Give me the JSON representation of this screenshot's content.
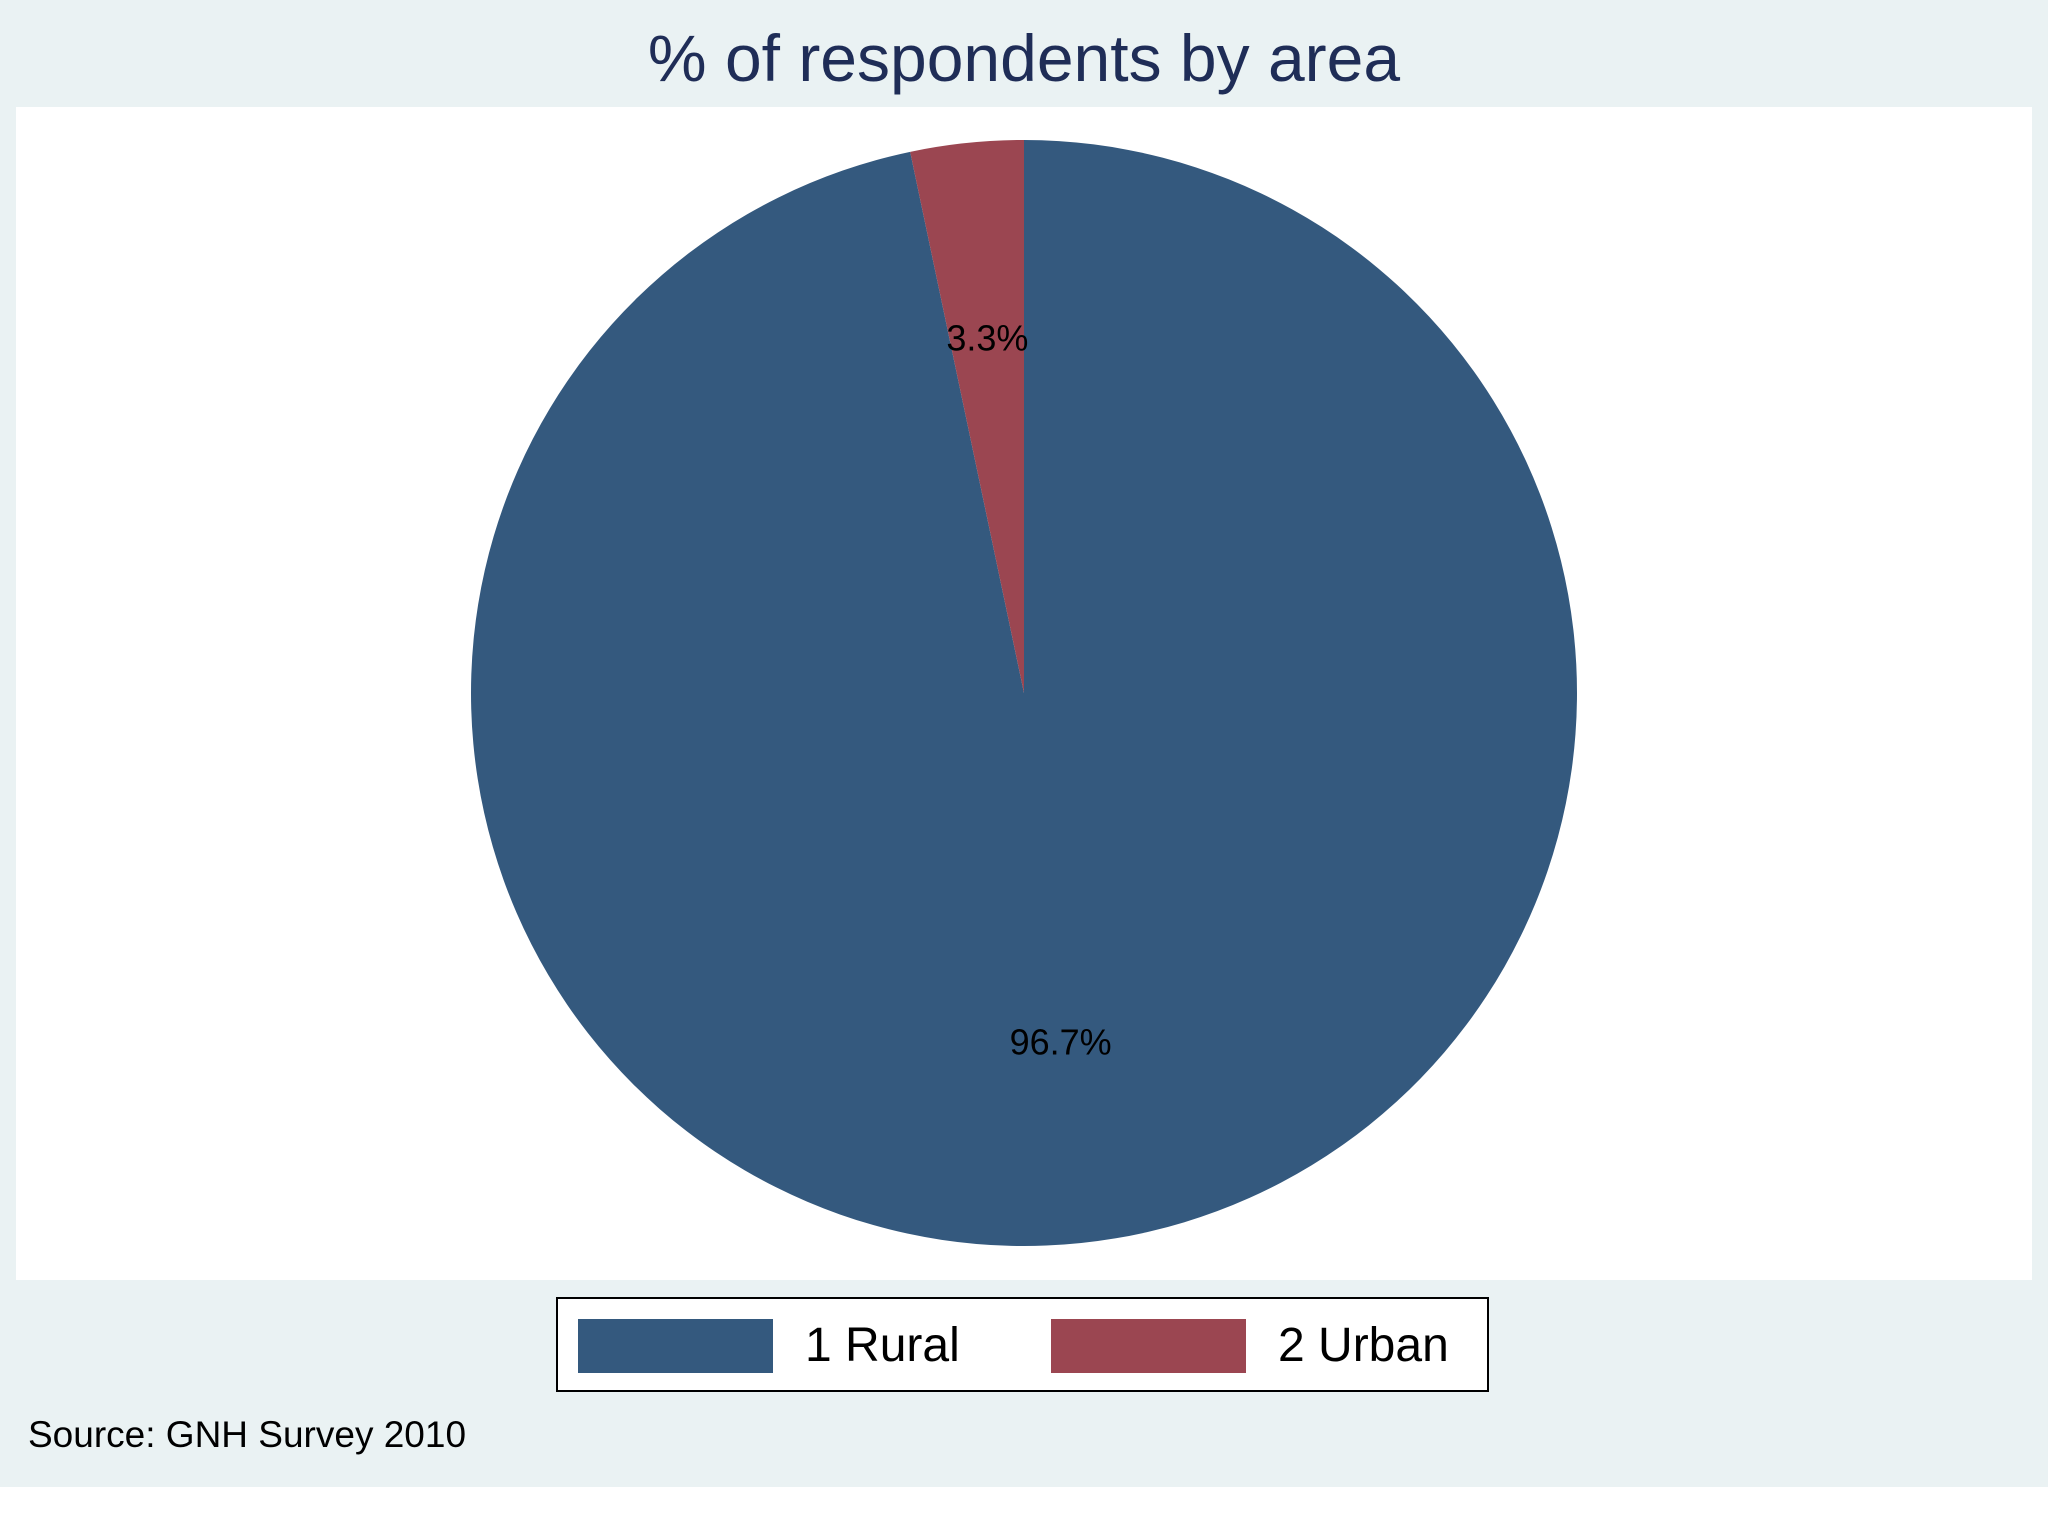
{
  "chart_data": {
    "type": "pie",
    "title": "% of respondents by area",
    "slices": [
      {
        "label": "1 Rural",
        "value": 96.7,
        "value_label": "96.7%",
        "color": "#34597e"
      },
      {
        "label": "2 Urban",
        "value": 3.3,
        "value_label": "3.3%",
        "color": "#9b4651"
      }
    ],
    "start_angle": "12 o'clock",
    "direction": "counter-clockwise",
    "legend_placement": "bottom-center",
    "note": "Source: GNH Survey 2010"
  },
  "colors": {
    "background": "#eaf2f3",
    "plot_background": "#ffffff",
    "title": "#1f2d57"
  }
}
